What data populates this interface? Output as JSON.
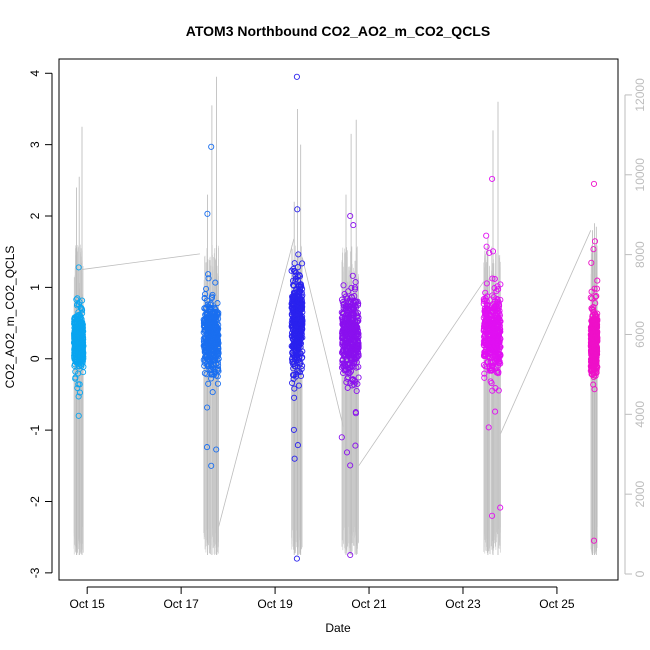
{
  "chart_data": {
    "type": "scatter",
    "title": "ATOM3 Northbound CO2_AO2_m_CO2_QCLS",
    "xlabel": "Date",
    "ylabel": "CO2_AO2_m_CO2_QCLS",
    "x_ticks": [
      "Oct 15",
      "Oct 17",
      "Oct 19",
      "Oct 21",
      "Oct 23",
      "Oct 25"
    ],
    "x_tick_days": [
      15,
      17,
      19,
      21,
      23,
      25
    ],
    "xlim_days": [
      14.4,
      26.3
    ],
    "ylim": [
      -3.1,
      4.2
    ],
    "y_ticks": [
      -3,
      -2,
      -1,
      0,
      1,
      2,
      3,
      4
    ],
    "ylim_right": [
      -150,
      12900
    ],
    "y_ticks_right": [
      0,
      2000,
      4000,
      6000,
      8000,
      10000,
      12000
    ],
    "grid": false,
    "clusters": [
      {
        "day_start": 14.72,
        "day_end": 14.92,
        "center": 0.25,
        "spread": 0.38,
        "min": -0.8,
        "max": 1.28,
        "color": "#0aa5f0",
        "alt_trace_max": [
          2.4,
          2.55,
          3.25
        ]
      },
      {
        "day_start": 17.48,
        "day_end": 17.8,
        "center": 0.3,
        "spread": 0.55,
        "min": -1.5,
        "max": 2.97,
        "color": "#1a6ff0",
        "alt_trace_max": [
          2.3,
          3.55,
          3.95
        ]
      },
      {
        "day_start": 19.35,
        "day_end": 19.58,
        "center": 0.5,
        "spread": 0.7,
        "min": -2.8,
        "max": 3.95,
        "color": "#2a22ee",
        "alt_trace_max": [
          2.2,
          3.5,
          3.0
        ]
      },
      {
        "day_start": 20.42,
        "day_end": 20.78,
        "center": 0.3,
        "spread": 0.65,
        "min": -2.75,
        "max": 2.0,
        "color": "#8a10ee",
        "alt_trace_max": [
          2.3,
          3.15,
          3.35
        ]
      },
      {
        "day_start": 23.44,
        "day_end": 23.8,
        "center": 0.35,
        "spread": 0.6,
        "min": -2.2,
        "max": 2.52,
        "color": "#e010f2",
        "alt_trace_max": [
          1.7,
          3.2,
          3.6
        ]
      },
      {
        "day_start": 25.72,
        "day_end": 25.86,
        "center": 0.25,
        "spread": 0.5,
        "min": -2.55,
        "max": 2.45,
        "color": "#ee10c8",
        "alt_trace_max": [
          1.8,
          1.9,
          1.85
        ]
      }
    ],
    "altitude_connectors": [
      {
        "from_day": 14.88,
        "from_y": 1.25,
        "to_day": 17.4,
        "to_y": 1.47
      },
      {
        "from_day": 17.8,
        "from_y": -2.35,
        "to_day": 19.4,
        "to_y": 1.68
      },
      {
        "from_day": 19.58,
        "from_y": 1.42,
        "to_day": 20.45,
        "to_y": -0.95
      },
      {
        "from_day": 20.78,
        "from_y": -1.5,
        "to_day": 23.44,
        "to_y": 1.08
      },
      {
        "from_day": 23.8,
        "from_y": -1.05,
        "to_day": 25.72,
        "to_y": 1.8
      }
    ]
  }
}
